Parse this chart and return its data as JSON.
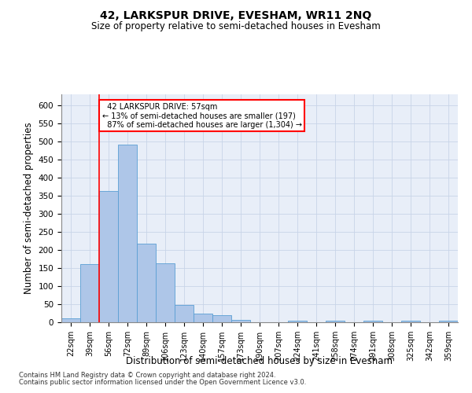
{
  "title": "42, LARKSPUR DRIVE, EVESHAM, WR11 2NQ",
  "subtitle": "Size of property relative to semi-detached houses in Evesham",
  "xlabel": "Distribution of semi-detached houses by size in Evesham",
  "ylabel": "Number of semi-detached properties",
  "bin_labels": [
    "22sqm",
    "39sqm",
    "56sqm",
    "72sqm",
    "89sqm",
    "106sqm",
    "123sqm",
    "140sqm",
    "157sqm",
    "173sqm",
    "190sqm",
    "207sqm",
    "224sqm",
    "241sqm",
    "258sqm",
    "274sqm",
    "291sqm",
    "308sqm",
    "325sqm",
    "342sqm",
    "359sqm"
  ],
  "bar_heights": [
    10,
    160,
    363,
    490,
    218,
    163,
    48,
    23,
    20,
    7,
    0,
    0,
    4,
    0,
    5,
    0,
    5,
    0,
    5,
    0,
    5
  ],
  "bar_color": "#aec6e8",
  "bar_edge_color": "#5a9fd4",
  "property_line_bin": 2,
  "property_size": "57sqm",
  "pct_smaller": 13,
  "pct_larger": 87,
  "n_smaller": 197,
  "n_larger": 1304,
  "ylim": [
    0,
    630
  ],
  "yticks": [
    0,
    50,
    100,
    150,
    200,
    250,
    300,
    350,
    400,
    450,
    500,
    550,
    600
  ],
  "grid_color": "#c8d4e8",
  "bg_color": "#e8eef8",
  "footer1": "Contains HM Land Registry data © Crown copyright and database right 2024.",
  "footer2": "Contains public sector information licensed under the Open Government Licence v3.0."
}
